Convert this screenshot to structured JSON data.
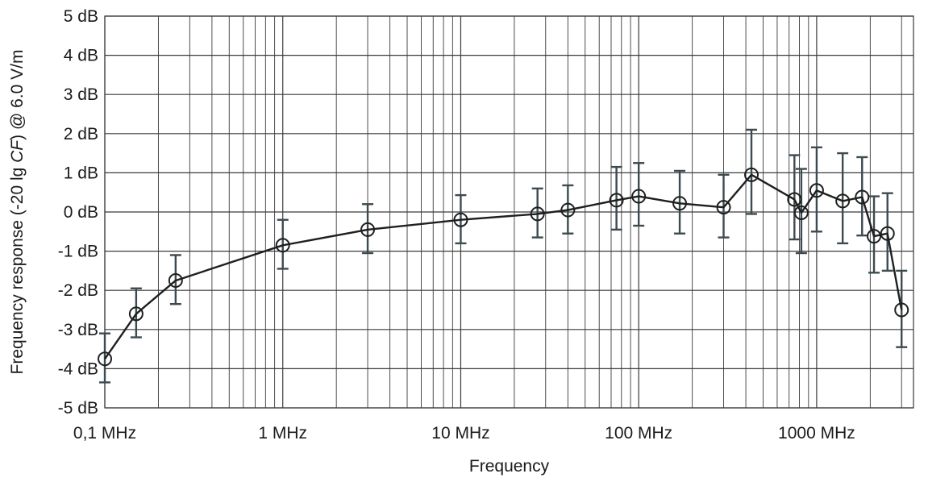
{
  "chart_data": {
    "type": "line",
    "title": "",
    "xlabel": "Frequency",
    "ylabel_parts": [
      "Frequency response (-20 lg ",
      "CF",
      ") @ 6.0 V/m"
    ],
    "x_scale": "log",
    "xlim": [
      0.1,
      3500
    ],
    "ylim": [
      -5,
      5
    ],
    "grid": true,
    "x_ticks": [
      {
        "value": 0.1,
        "label": "0,1 MHz"
      },
      {
        "value": 1,
        "label": "1 MHz"
      },
      {
        "value": 10,
        "label": "10 MHz"
      },
      {
        "value": 100,
        "label": "100 MHz"
      },
      {
        "value": 1000,
        "label": "1000 MHz"
      }
    ],
    "y_ticks": [
      {
        "value": 5,
        "label": "5 dB"
      },
      {
        "value": 4,
        "label": "4 dB"
      },
      {
        "value": 3,
        "label": "3 dB"
      },
      {
        "value": 2,
        "label": "2 dB"
      },
      {
        "value": 1,
        "label": "1 dB"
      },
      {
        "value": 0,
        "label": "0 dB"
      },
      {
        "value": -1,
        "label": "-1 dB"
      },
      {
        "value": -2,
        "label": "-2 dB"
      },
      {
        "value": -3,
        "label": "-3 dB"
      },
      {
        "value": -4,
        "label": "-4 dB"
      },
      {
        "value": -5,
        "label": "-5 dB"
      }
    ],
    "series": [
      {
        "line_color": "#1f1f1f",
        "errorbar_color": "#3d4a4f",
        "marker": "open-circle",
        "points": [
          {
            "x": 0.1,
            "y": -3.75,
            "low": -4.35,
            "high": -3.1
          },
          {
            "x": 0.15,
            "y": -2.6,
            "low": -3.2,
            "high": -1.95
          },
          {
            "x": 0.25,
            "y": -1.75,
            "low": -2.35,
            "high": -1.1
          },
          {
            "x": 1,
            "y": -0.85,
            "low": -1.45,
            "high": -0.2
          },
          {
            "x": 3,
            "y": -0.45,
            "low": -1.05,
            "high": 0.2
          },
          {
            "x": 10,
            "y": -0.2,
            "low": -0.8,
            "high": 0.43
          },
          {
            "x": 27,
            "y": -0.05,
            "low": -0.65,
            "high": 0.6
          },
          {
            "x": 40,
            "y": 0.05,
            "low": -0.55,
            "high": 0.68
          },
          {
            "x": 75,
            "y": 0.3,
            "low": -0.45,
            "high": 1.15
          },
          {
            "x": 100,
            "y": 0.4,
            "low": -0.35,
            "high": 1.25
          },
          {
            "x": 170,
            "y": 0.22,
            "low": -0.55,
            "high": 1.05
          },
          {
            "x": 300,
            "y": 0.12,
            "low": -0.65,
            "high": 0.95
          },
          {
            "x": 430,
            "y": 0.95,
            "low": -0.05,
            "high": 2.1
          },
          {
            "x": 750,
            "y": 0.32,
            "low": -0.7,
            "high": 1.45
          },
          {
            "x": 820,
            "y": -0.02,
            "low": -1.05,
            "high": 1.1
          },
          {
            "x": 1000,
            "y": 0.55,
            "low": -0.5,
            "high": 1.65
          },
          {
            "x": 1400,
            "y": 0.28,
            "low": -0.8,
            "high": 1.5
          },
          {
            "x": 1800,
            "y": 0.38,
            "low": -0.6,
            "high": 1.4
          },
          {
            "x": 2100,
            "y": -0.62,
            "low": -1.55,
            "high": 0.4
          },
          {
            "x": 2500,
            "y": -0.55,
            "low": -1.5,
            "high": 0.48
          },
          {
            "x": 3000,
            "y": -2.5,
            "low": -3.45,
            "high": -1.5
          }
        ]
      }
    ]
  }
}
